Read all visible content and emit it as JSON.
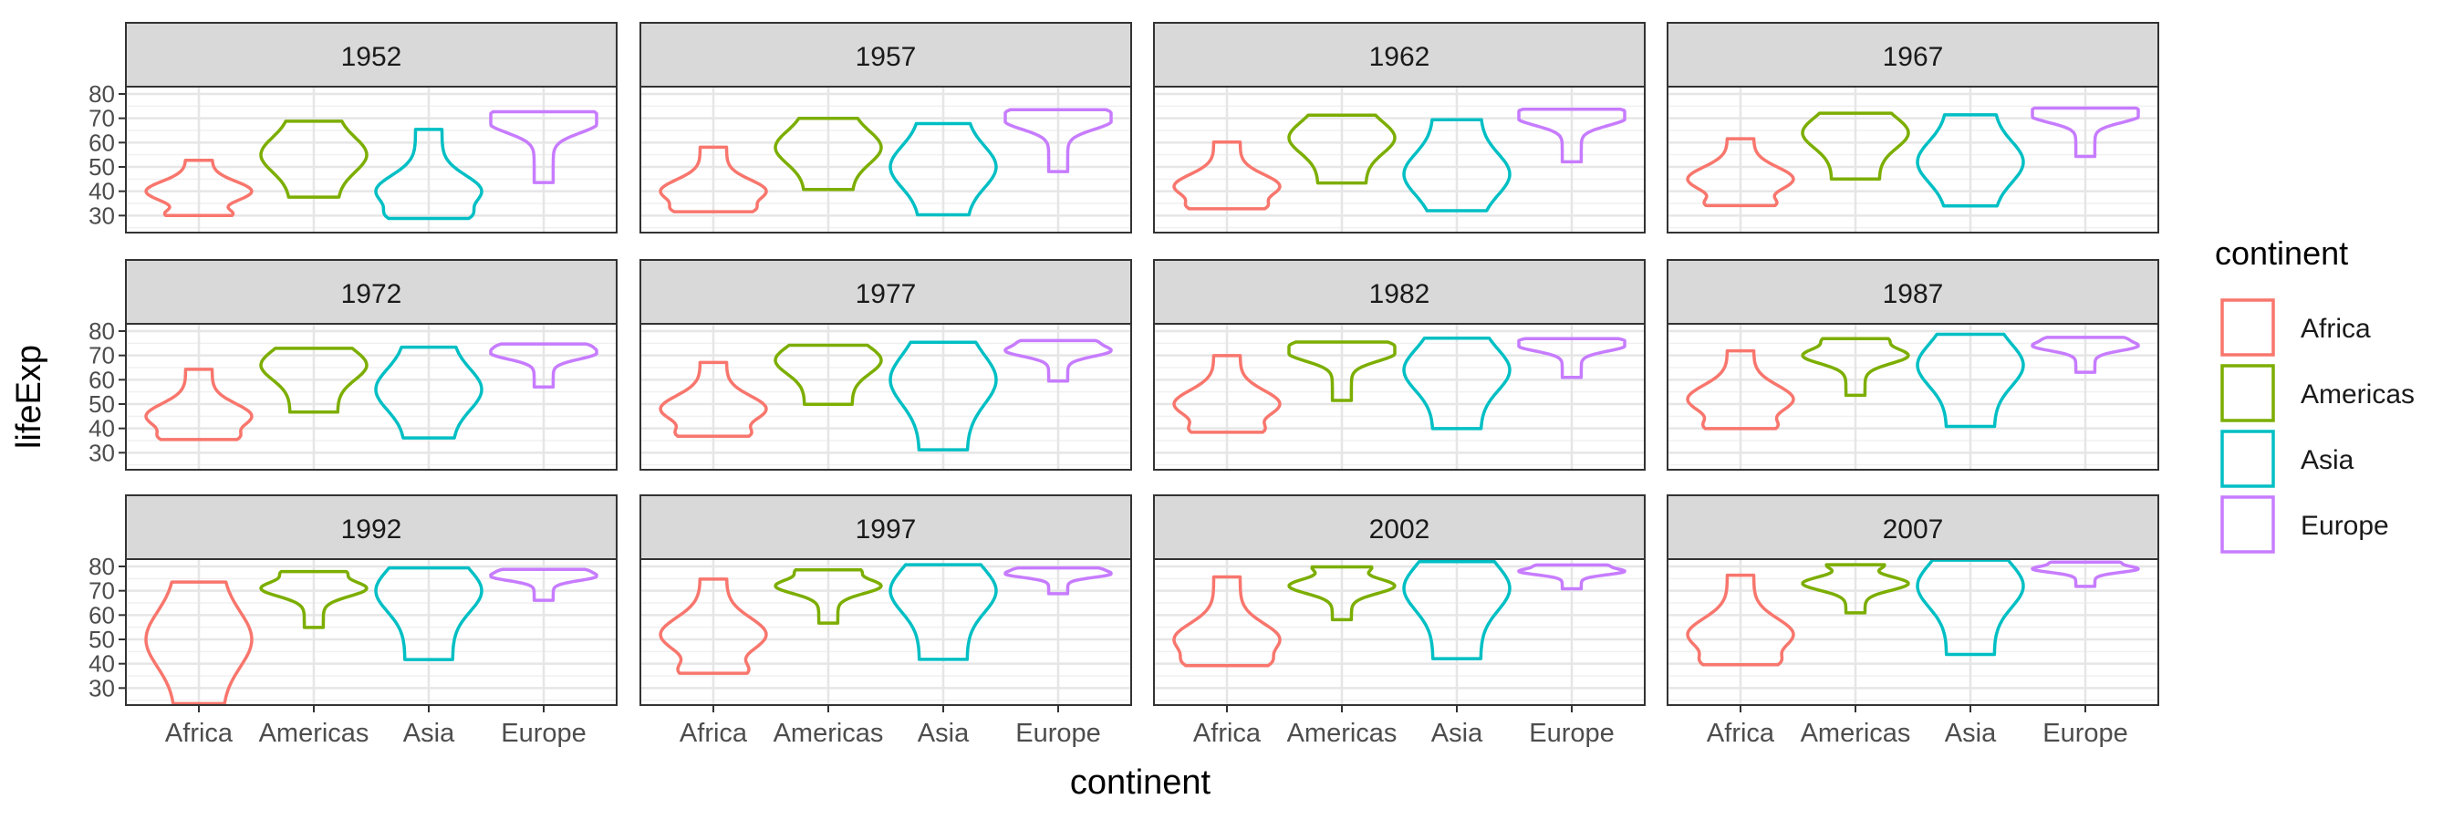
{
  "chart_data": {
    "type": "violin",
    "xlabel": "continent",
    "ylabel": "lifeExp",
    "categories": [
      "Africa",
      "Americas",
      "Asia",
      "Europe"
    ],
    "y_ticks": [
      30,
      40,
      50,
      60,
      70,
      80
    ],
    "ylim": [
      23,
      83
    ],
    "grid": true,
    "legend": {
      "title": "continent",
      "position": "right",
      "entries": [
        {
          "label": "Africa",
          "color": "#F8766D"
        },
        {
          "label": "Americas",
          "color": "#7CAE00"
        },
        {
          "label": "Asia",
          "color": "#00BFC4"
        },
        {
          "label": "Europe",
          "color": "#C77CFF"
        }
      ]
    },
    "facets": [
      {
        "year": "1952",
        "violins": [
          {
            "min": 30.0,
            "max": 52.7,
            "peak": 40.0,
            "shape": "bottom"
          },
          {
            "min": 37.6,
            "max": 68.8,
            "peak": 55.0,
            "shape": "broad"
          },
          {
            "min": 28.8,
            "max": 65.4,
            "peak": 40.0,
            "shape": "bottom"
          },
          {
            "min": 43.6,
            "max": 72.7,
            "peak": 68.0,
            "shape": "top"
          }
        ]
      },
      {
        "year": "1957",
        "violins": [
          {
            "min": 31.6,
            "max": 58.1,
            "peak": 40.0,
            "shape": "bottom"
          },
          {
            "min": 40.7,
            "max": 70.0,
            "peak": 58.0,
            "shape": "broad"
          },
          {
            "min": 30.3,
            "max": 67.8,
            "peak": 50.0,
            "shape": "broad"
          },
          {
            "min": 48.1,
            "max": 73.5,
            "peak": 69.0,
            "shape": "top"
          }
        ]
      },
      {
        "year": "1962",
        "violins": [
          {
            "min": 32.8,
            "max": 60.2,
            "peak": 42.0,
            "shape": "bottom"
          },
          {
            "min": 43.4,
            "max": 71.3,
            "peak": 62.0,
            "shape": "broad"
          },
          {
            "min": 32.0,
            "max": 69.4,
            "peak": 47.0,
            "shape": "broad"
          },
          {
            "min": 52.1,
            "max": 73.7,
            "peak": 70.0,
            "shape": "top"
          }
        ]
      },
      {
        "year": "1967",
        "violins": [
          {
            "min": 34.1,
            "max": 61.6,
            "peak": 45.0,
            "shape": "bottom"
          },
          {
            "min": 45.0,
            "max": 72.1,
            "peak": 64.0,
            "shape": "broad"
          },
          {
            "min": 34.0,
            "max": 71.4,
            "peak": 52.0,
            "shape": "broad"
          },
          {
            "min": 54.3,
            "max": 74.2,
            "peak": 71.0,
            "shape": "top"
          }
        ]
      },
      {
        "year": "1972",
        "violins": [
          {
            "min": 35.4,
            "max": 64.3,
            "peak": 45.0,
            "shape": "bottom"
          },
          {
            "min": 46.7,
            "max": 72.9,
            "peak": 66.0,
            "shape": "broad"
          },
          {
            "min": 36.1,
            "max": 73.4,
            "peak": 56.0,
            "shape": "broad"
          },
          {
            "min": 57.0,
            "max": 74.7,
            "peak": 71.0,
            "shape": "top"
          }
        ]
      },
      {
        "year": "1977",
        "violins": [
          {
            "min": 36.8,
            "max": 67.1,
            "peak": 48.0,
            "shape": "bottom"
          },
          {
            "min": 49.9,
            "max": 74.2,
            "peak": 68.0,
            "shape": "broad"
          },
          {
            "min": 31.2,
            "max": 75.4,
            "peak": 60.0,
            "shape": "broad"
          },
          {
            "min": 59.5,
            "max": 76.1,
            "peak": 72.0,
            "shape": "top"
          }
        ]
      },
      {
        "year": "1982",
        "violins": [
          {
            "min": 38.4,
            "max": 69.9,
            "peak": 50.0,
            "shape": "bottom"
          },
          {
            "min": 51.5,
            "max": 75.5,
            "peak": 71.0,
            "shape": "top"
          },
          {
            "min": 39.9,
            "max": 77.1,
            "peak": 64.0,
            "shape": "broad"
          },
          {
            "min": 61.0,
            "max": 76.9,
            "peak": 74.0,
            "shape": "top"
          }
        ]
      },
      {
        "year": "1987",
        "violins": [
          {
            "min": 39.9,
            "max": 71.9,
            "peak": 52.0,
            "shape": "bottom"
          },
          {
            "min": 53.6,
            "max": 76.9,
            "peak": 70.0,
            "shape": "top"
          },
          {
            "min": 40.8,
            "max": 78.7,
            "peak": 66.0,
            "shape": "broad"
          },
          {
            "min": 63.1,
            "max": 77.4,
            "peak": 74.0,
            "shape": "top"
          }
        ]
      },
      {
        "year": "1992",
        "violins": [
          {
            "min": 23.6,
            "max": 73.6,
            "peak": 50.0,
            "shape": "broad"
          },
          {
            "min": 54.9,
            "max": 77.9,
            "peak": 71.0,
            "shape": "top"
          },
          {
            "min": 41.7,
            "max": 79.4,
            "peak": 70.0,
            "shape": "broad"
          },
          {
            "min": 66.1,
            "max": 78.8,
            "peak": 76.0,
            "shape": "top"
          }
        ]
      },
      {
        "year": "1997",
        "violins": [
          {
            "min": 36.1,
            "max": 74.8,
            "peak": 52.0,
            "shape": "bottom"
          },
          {
            "min": 56.7,
            "max": 78.6,
            "peak": 72.0,
            "shape": "top"
          },
          {
            "min": 41.8,
            "max": 80.7,
            "peak": 70.0,
            "shape": "broad"
          },
          {
            "min": 68.8,
            "max": 79.4,
            "peak": 77.0,
            "shape": "top"
          }
        ]
      },
      {
        "year": "2002",
        "violins": [
          {
            "min": 39.2,
            "max": 75.7,
            "peak": 50.0,
            "shape": "bottom"
          },
          {
            "min": 58.1,
            "max": 79.8,
            "peak": 72.0,
            "shape": "top"
          },
          {
            "min": 42.1,
            "max": 82.0,
            "peak": 71.0,
            "shape": "broad"
          },
          {
            "min": 70.8,
            "max": 80.6,
            "peak": 78.0,
            "shape": "top"
          }
        ]
      },
      {
        "year": "2007",
        "violins": [
          {
            "min": 39.6,
            "max": 76.4,
            "peak": 52.0,
            "shape": "bottom"
          },
          {
            "min": 60.9,
            "max": 80.7,
            "peak": 73.0,
            "shape": "top"
          },
          {
            "min": 43.8,
            "max": 82.6,
            "peak": 72.0,
            "shape": "broad"
          },
          {
            "min": 71.8,
            "max": 81.8,
            "peak": 79.0,
            "shape": "top"
          }
        ]
      }
    ]
  }
}
